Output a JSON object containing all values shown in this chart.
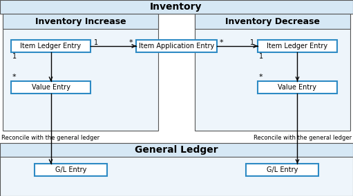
{
  "bg_color": "#ffffff",
  "inventory_header_bg": "#d6e8f5",
  "section_bg": "#eef5fb",
  "box_bg": "#ffffff",
  "box_border": "#2d8ac4",
  "outer_border": "#555555",
  "inv_increase_title": "Inventory Increase",
  "inv_decrease_title": "Inventory Decrease",
  "inventory_header_text": "Inventory",
  "general_ledger_header_text": "General Ledger",
  "item_ledger_entry": "Item Ledger Entry",
  "item_application_entry": "Item Application Entry",
  "value_entry": "Value Entry",
  "gl_entry": "G/L Entry",
  "reconcile_text": "Reconcile with the general ledger",
  "fig_w": 5.11,
  "fig_h": 2.85,
  "dpi": 100
}
